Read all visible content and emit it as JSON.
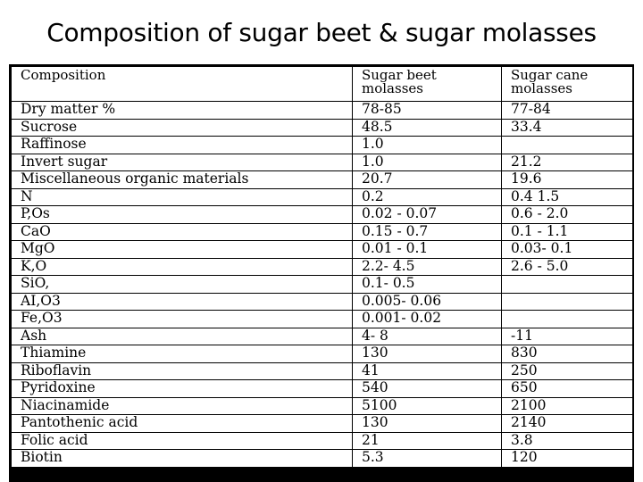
{
  "title": "Composition of sugar beet & sugar molasses",
  "table": {
    "headers": {
      "col1": "Composition",
      "col2_line1": "Sugar beet",
      "col2_line2": "molasses",
      "col3_line1": "Sugar cane",
      "col3_line2": "molasses"
    },
    "rows": [
      [
        "Dry matter %",
        "78-85",
        "77-84"
      ],
      [
        "Sucrose",
        "48.5",
        "33.4"
      ],
      [
        "Raffinose",
        "1.0",
        ""
      ],
      [
        "Invert sugar",
        "1.0",
        "21.2"
      ],
      [
        "Miscellaneous organic materials",
        "20.7",
        "19.6"
      ],
      [
        "N",
        "0.2",
        "0.4   1.5"
      ],
      [
        "P,Os",
        "0.02 - 0.07",
        "0.6 - 2.0"
      ],
      [
        "CaO",
        "0.15 - 0.7",
        "0.1 - 1.1"
      ],
      [
        "MgO",
        "0.01 - 0.1",
        "0.03- 0.1"
      ],
      [
        "K,O",
        "2.2- 4.5",
        "2.6 - 5.0"
      ],
      [
        "SiO,",
        "0.1- 0.5",
        ""
      ],
      [
        "AI,O3",
        "0.005- 0.06",
        ""
      ],
      [
        "Fe,O3",
        "0.001- 0.02",
        ""
      ],
      [
        "Ash",
        "4- 8",
        "-11"
      ],
      [
        "Thiamine",
        "130",
        "830"
      ],
      [
        "Riboflavin",
        "41",
        "250"
      ],
      [
        "Pyridoxine",
        "540",
        "650"
      ],
      [
        "Niacinamide",
        "5100",
        "2100"
      ],
      [
        "Pantothenic acid",
        "130",
        "2140"
      ],
      [
        "Folic acid",
        "21",
        "3.8"
      ],
      [
        "Biotin",
        "5.3",
        "120"
      ]
    ]
  }
}
